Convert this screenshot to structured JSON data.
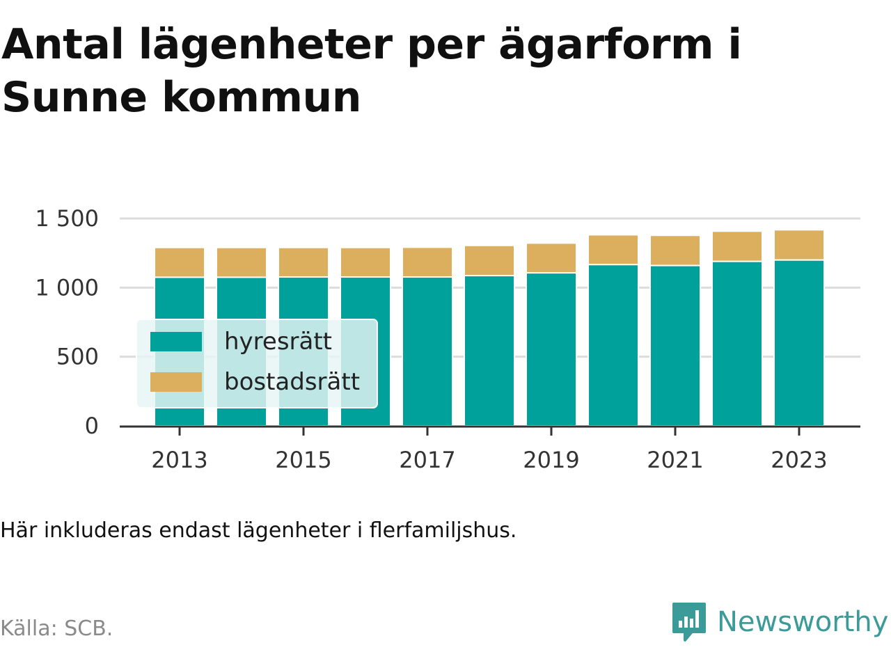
{
  "title": "Antal lägenheter per ägarform i Sunne kommun",
  "note": "Här inkluderas endast lägenheter i flerfamiljshus.",
  "source": "Källa: SCB.",
  "brand": {
    "name": "Newsworthy",
    "icon": "newsworthy-logo-icon",
    "color": "#3a9b98"
  },
  "chart_data": {
    "type": "bar",
    "stacked": true,
    "categories": [
      "2013",
      "2014",
      "2015",
      "2016",
      "2017",
      "2018",
      "2019",
      "2020",
      "2021",
      "2022",
      "2023"
    ],
    "x_tick_labels": [
      "2013",
      "2015",
      "2017",
      "2019",
      "2021",
      "2023"
    ],
    "series": [
      {
        "name": "hyresrätt",
        "color": "#00a19a",
        "values": [
          1075,
          1075,
          1077,
          1077,
          1077,
          1087,
          1107,
          1167,
          1160,
          1190,
          1200
        ]
      },
      {
        "name": "bostadsrätt",
        "color": "#dcaf5f",
        "values": [
          215,
          215,
          213,
          213,
          215,
          218,
          215,
          215,
          218,
          218,
          218
        ]
      }
    ],
    "ylim": [
      0,
      1500
    ],
    "y_ticks": [
      0,
      500,
      1000,
      1500
    ],
    "y_tick_labels": [
      "0",
      "500",
      "1 000",
      "1 500"
    ],
    "xlabel": "",
    "ylabel": "",
    "grid": true,
    "legend_position": "bottom-left inside"
  }
}
